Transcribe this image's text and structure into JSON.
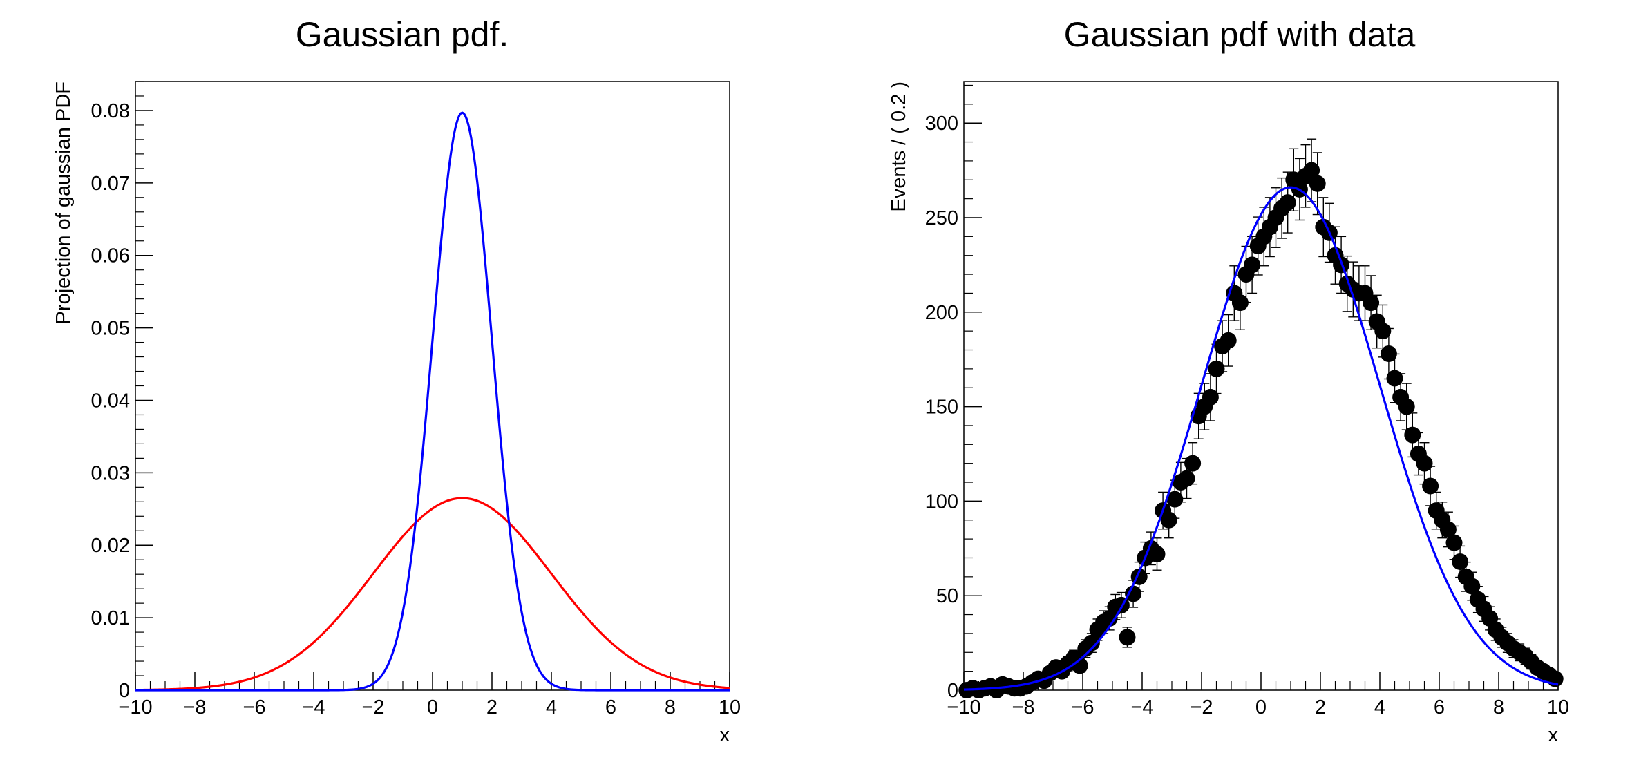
{
  "chart_data": [
    {
      "type": "line",
      "title": "Gaussian pdf.",
      "xlabel": "x",
      "ylabel": "Projection of gaussian PDF",
      "xlim": [
        -10,
        10
      ],
      "ylim": [
        0,
        0.084
      ],
      "xticks": [
        -10,
        -8,
        -6,
        -4,
        -2,
        0,
        2,
        4,
        6,
        8,
        10
      ],
      "yticks": [
        0,
        0.01,
        0.02,
        0.03,
        0.04,
        0.05,
        0.06,
        0.07,
        0.08
      ],
      "grid": false,
      "series": [
        {
          "color": "#ff0000",
          "mean": 1,
          "sigma": 3,
          "amplitude": 0.0265
        },
        {
          "color": "#0000ff",
          "mean": 1,
          "sigma": 1,
          "amplitude": 0.0797
        }
      ]
    },
    {
      "type": "scatter",
      "title": "Gaussian pdf with data",
      "xlabel": "x",
      "ylabel": "Events / ( 0.2 )",
      "xlim": [
        -10,
        10
      ],
      "ylim": [
        0,
        322
      ],
      "xticks": [
        -10,
        -8,
        -6,
        -4,
        -2,
        0,
        2,
        4,
        6,
        8,
        10
      ],
      "yticks": [
        0,
        50,
        100,
        150,
        200,
        250,
        300
      ],
      "grid": false,
      "fit": {
        "color": "#0000ff",
        "mean": 1,
        "sigma": 3,
        "amplitude": 266
      },
      "points": {
        "color": "#000000",
        "x": [
          -9.9,
          -9.7,
          -9.5,
          -9.3,
          -9.1,
          -8.9,
          -8.7,
          -8.5,
          -8.3,
          -8.1,
          -7.9,
          -7.7,
          -7.5,
          -7.3,
          -7.1,
          -6.9,
          -6.7,
          -6.5,
          -6.3,
          -6.1,
          -5.9,
          -5.7,
          -5.5,
          -5.3,
          -5.1,
          -4.9,
          -4.7,
          -4.5,
          -4.3,
          -4.1,
          -3.9,
          -3.7,
          -3.5,
          -3.3,
          -3.1,
          -2.9,
          -2.7,
          -2.5,
          -2.3,
          -2.1,
          -1.9,
          -1.7,
          -1.5,
          -1.3,
          -1.1,
          -0.9,
          -0.7,
          -0.5,
          -0.3,
          -0.1,
          0.1,
          0.3,
          0.5,
          0.7,
          0.9,
          1.1,
          1.3,
          1.5,
          1.7,
          1.9,
          2.1,
          2.3,
          2.5,
          2.7,
          2.9,
          3.1,
          3.3,
          3.5,
          3.7,
          3.9,
          4.1,
          4.3,
          4.5,
          4.7,
          4.9,
          5.1,
          5.3,
          5.5,
          5.7,
          5.9,
          6.1,
          6.3,
          6.5,
          6.7,
          6.9,
          7.1,
          7.3,
          7.5,
          7.7,
          7.9,
          8.1,
          8.3,
          8.5,
          8.7,
          8.9,
          9.1,
          9.3,
          9.5,
          9.7,
          9.9
        ],
        "y": [
          0,
          1,
          0,
          1,
          2,
          0,
          3,
          2,
          1,
          1,
          2,
          4,
          6,
          5,
          9,
          12,
          10,
          14,
          17,
          13,
          22,
          25,
          32,
          36,
          38,
          44,
          45,
          28,
          51,
          60,
          70,
          75,
          72,
          95,
          90,
          101,
          110,
          112,
          120,
          145,
          150,
          155,
          170,
          182,
          185,
          210,
          205,
          220,
          225,
          235,
          240,
          245,
          250,
          255,
          258,
          270,
          265,
          272,
          275,
          268,
          245,
          242,
          230,
          225,
          215,
          212,
          210,
          210,
          205,
          195,
          190,
          178,
          165,
          155,
          150,
          135,
          125,
          120,
          108,
          95,
          90,
          85,
          78,
          68,
          60,
          55,
          48,
          43,
          38,
          32,
          28,
          25,
          22,
          20,
          18,
          15,
          12,
          10,
          8,
          6
        ]
      }
    }
  ]
}
